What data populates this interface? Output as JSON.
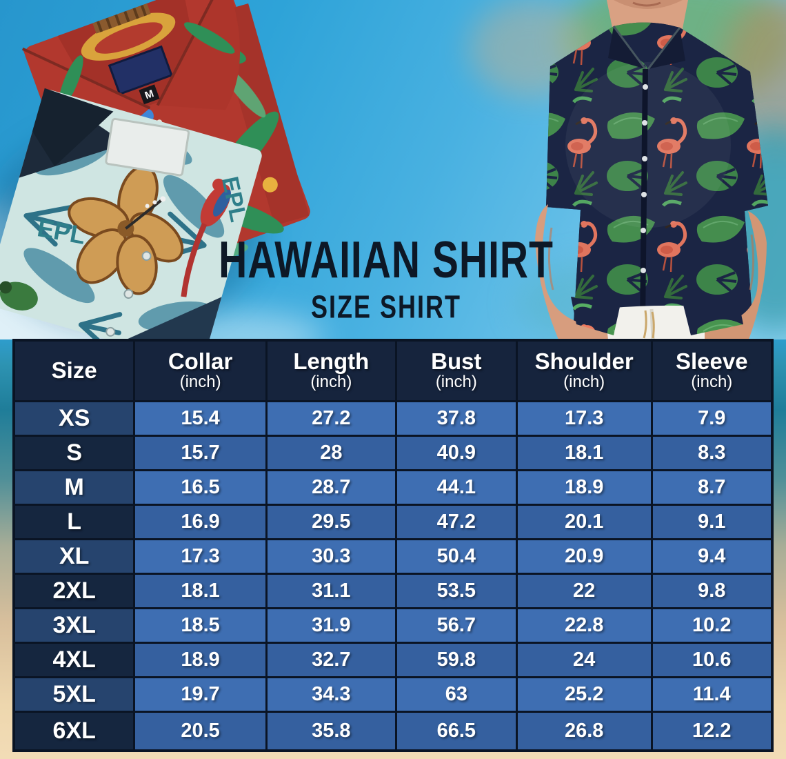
{
  "title": "HAWAIIAN SHIRT",
  "subtitle": "SIZE SHIRT",
  "photo": {
    "left_red_shirt": "folded red hawaiian shirt with green palm leaves",
    "left_teal_shirt": "folded teal hawaiian shirt with hibiscus flowers and parrot",
    "right_model": "man wearing navy flamingo hawaiian shirt and white pants",
    "red_shirt_tag_size": "M",
    "teal_shirt_print_text": "EPL"
  },
  "table": {
    "columns": [
      {
        "label": "Size",
        "unit": ""
      },
      {
        "label": "Collar",
        "unit": "(inch)"
      },
      {
        "label": "Length",
        "unit": "(inch)"
      },
      {
        "label": "Bust",
        "unit": "(inch)"
      },
      {
        "label": "Shoulder",
        "unit": "(inch)"
      },
      {
        "label": "Sleeve",
        "unit": "(inch)"
      }
    ],
    "rows": [
      {
        "size": "XS",
        "values": [
          "15.4",
          "27.2",
          "37.8",
          "17.3",
          "7.9"
        ]
      },
      {
        "size": "S",
        "values": [
          "15.7",
          "28",
          "40.9",
          "18.1",
          "8.3"
        ]
      },
      {
        "size": "M",
        "values": [
          "16.5",
          "28.7",
          "44.1",
          "18.9",
          "8.7"
        ]
      },
      {
        "size": "L",
        "values": [
          "16.9",
          "29.5",
          "47.2",
          "20.1",
          "9.1"
        ]
      },
      {
        "size": "XL",
        "values": [
          "17.3",
          "30.3",
          "50.4",
          "20.9",
          "9.4"
        ]
      },
      {
        "size": "2XL",
        "values": [
          "18.1",
          "31.1",
          "53.5",
          "22",
          "9.8"
        ]
      },
      {
        "size": "3XL",
        "values": [
          "18.5",
          "31.9",
          "56.7",
          "22.8",
          "10.2"
        ]
      },
      {
        "size": "4XL",
        "values": [
          "18.9",
          "32.7",
          "59.8",
          "24",
          "10.6"
        ]
      },
      {
        "size": "5XL",
        "values": [
          "19.7",
          "34.3",
          "63",
          "25.2",
          "11.4"
        ]
      },
      {
        "size": "6XL",
        "values": [
          "20.5",
          "35.8",
          "66.5",
          "26.8",
          "12.2"
        ]
      }
    ]
  },
  "chart_data": {
    "type": "table",
    "title": "Hawaiian Shirt Size Shirt",
    "columns": [
      "Size",
      "Collar (inch)",
      "Length (inch)",
      "Bust (inch)",
      "Shoulder (inch)",
      "Sleeve (inch)"
    ],
    "rows": [
      [
        "XS",
        15.4,
        27.2,
        37.8,
        17.3,
        7.9
      ],
      [
        "S",
        15.7,
        28,
        40.9,
        18.1,
        8.3
      ],
      [
        "M",
        16.5,
        28.7,
        44.1,
        18.9,
        8.7
      ],
      [
        "L",
        16.9,
        29.5,
        47.2,
        20.1,
        9.1
      ],
      [
        "XL",
        17.3,
        30.3,
        50.4,
        20.9,
        9.4
      ],
      [
        "2XL",
        18.1,
        31.1,
        53.5,
        22,
        9.8
      ],
      [
        "3XL",
        18.5,
        31.9,
        56.7,
        22.8,
        10.2
      ],
      [
        "4XL",
        18.9,
        32.7,
        59.8,
        24,
        10.6
      ],
      [
        "5XL",
        19.7,
        34.3,
        63,
        25.2,
        11.4
      ],
      [
        "6XL",
        20.5,
        35.8,
        66.5,
        26.8,
        12.2
      ]
    ]
  },
  "colors": {
    "header_bg": "#16243d",
    "size_cell_odd": "#26446e",
    "size_cell_even": "#15263f",
    "value_cell_odd": "#3e6eb2",
    "value_cell_even": "#35609f",
    "grid": "#0a1424",
    "title_text": "#0d1826",
    "sky": "#49b1e1",
    "sand": "#eed7ae",
    "shirt_navy": "#1b2544",
    "flamingo_pink": "#ee7a60",
    "leaf_green": "#48944f",
    "red_shirt": "#b2382e",
    "teal_shirt": "#cfe5e2"
  }
}
